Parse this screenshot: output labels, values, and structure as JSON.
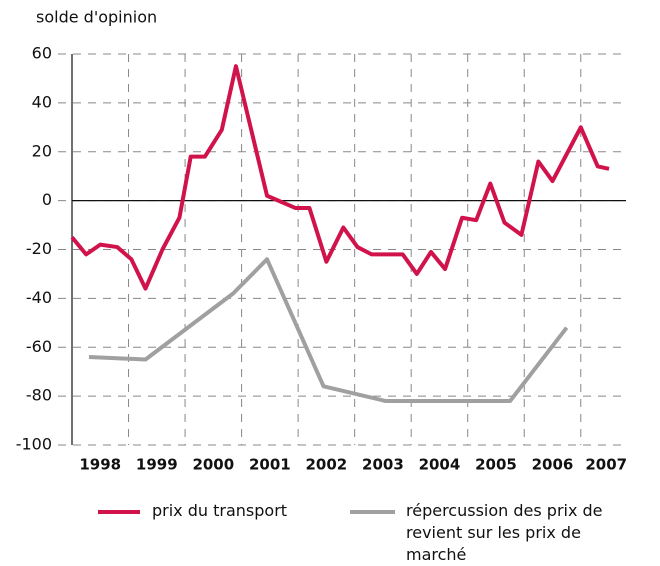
{
  "chart_data": {
    "type": "line",
    "y_label": "solde d'opinion",
    "xlim": [
      1998,
      2007.8
    ],
    "xticks": [
      {
        "value": 1998.5,
        "label": "1998"
      },
      {
        "value": 1999.5,
        "label": "1999"
      },
      {
        "value": 2000.5,
        "label": "2000"
      },
      {
        "value": 2001.5,
        "label": "2001"
      },
      {
        "value": 2002.5,
        "label": "2002"
      },
      {
        "value": 2003.5,
        "label": "2003"
      },
      {
        "value": 2004.5,
        "label": "2004"
      },
      {
        "value": 2005.5,
        "label": "2005"
      },
      {
        "value": 2006.5,
        "label": "2006"
      },
      {
        "value": 2007.45,
        "label": "2007"
      }
    ],
    "xgrid": [
      1999,
      2000,
      2001,
      2002,
      2003,
      2004,
      2005,
      2006,
      2007
    ],
    "ylim": [
      -100,
      60
    ],
    "yticks": [
      -100,
      -80,
      -60,
      -40,
      -20,
      0,
      20,
      40,
      60
    ],
    "grid": true,
    "series": [
      {
        "name": "prix du transport",
        "color": "#d0134a",
        "x": [
          1998.0,
          1998.25,
          1998.5,
          1998.8,
          1999.05,
          1999.3,
          1999.6,
          1999.9,
          2000.1,
          2000.35,
          2000.65,
          2000.9,
          2001.45,
          2001.95,
          2002.2,
          2002.5,
          2002.8,
          2003.05,
          2003.3,
          2003.6,
          2003.85,
          2004.1,
          2004.35,
          2004.6,
          2004.9,
          2005.15,
          2005.4,
          2005.65,
          2005.95,
          2006.25,
          2006.5,
          2006.75,
          2007.0,
          2007.3,
          2007.5
        ],
        "values": [
          -15,
          -22,
          -18,
          -19,
          -24,
          -36,
          -20,
          -7,
          18,
          18,
          29,
          55,
          2,
          -3,
          -3,
          -25,
          -11,
          -19,
          -22,
          -22,
          -22,
          -30,
          -21,
          -28,
          -7,
          -8,
          7,
          -9,
          -14,
          16,
          8,
          19,
          30,
          14,
          13
        ]
      },
      {
        "name": "répercussion des prix de revient sur les prix de marché",
        "color": "#a0a0a0",
        "x": [
          1998.3,
          1999.3,
          2000.85,
          2001.45,
          2002.45,
          2003.55,
          2005.75,
          2006.75
        ],
        "values": [
          -64,
          -65,
          -38,
          -24,
          -76,
          -82,
          -82,
          -52
        ]
      }
    ]
  }
}
